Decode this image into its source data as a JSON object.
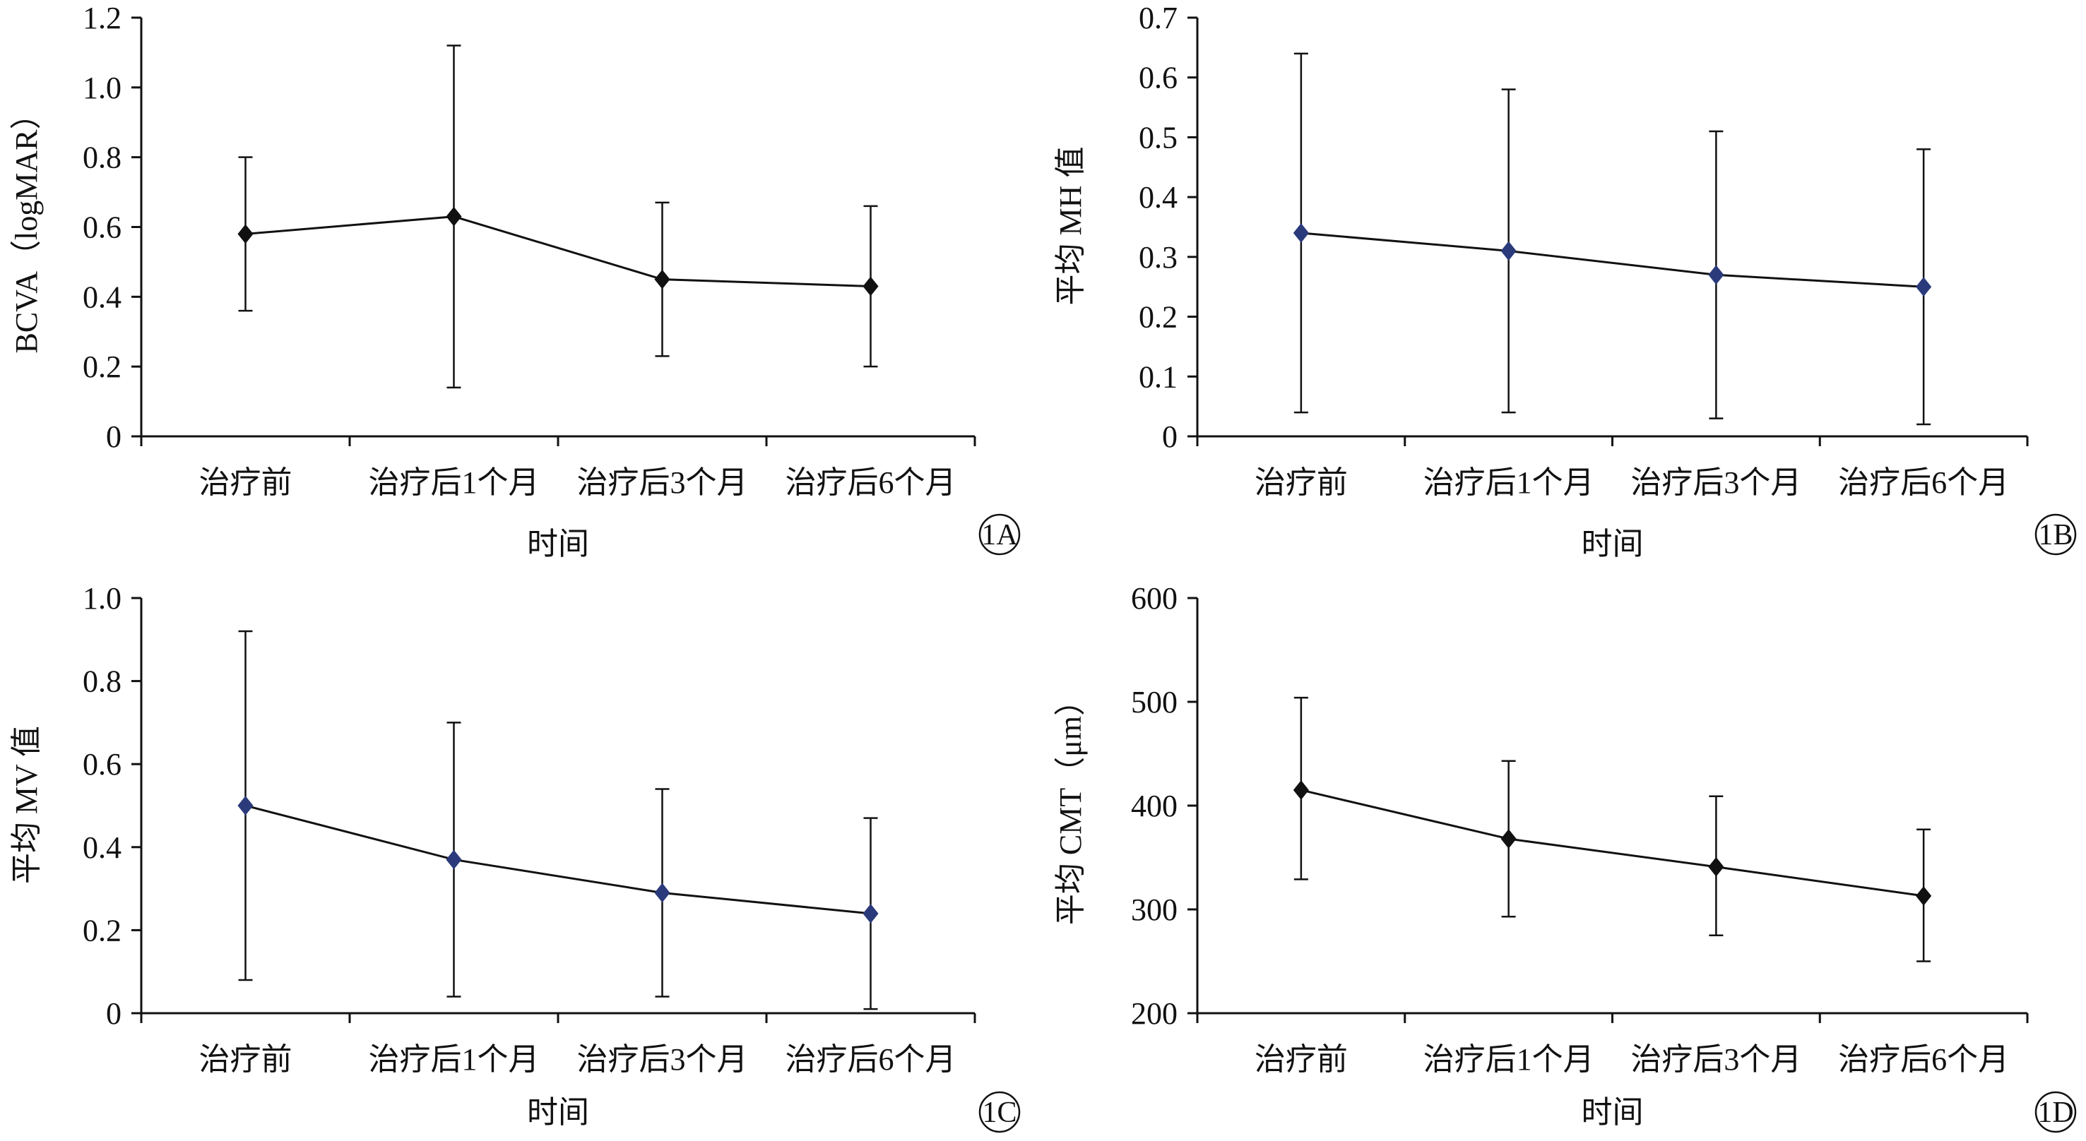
{
  "chart_data": [
    {
      "id": "A",
      "type": "line",
      "panel_label": "1A",
      "ylabel": "BCVA（logMAR）",
      "xlabel": "时间",
      "categories": [
        "治疗前",
        "治疗后1个月",
        "治疗后3个月",
        "治疗后6个月"
      ],
      "ylim": [
        0,
        1.2
      ],
      "yticks": [
        "0",
        "0.2",
        "0.4",
        "0.6",
        "0.8",
        "1.0",
        "1.2"
      ],
      "series": [
        {
          "values": [
            0.58,
            0.63,
            0.45,
            0.43
          ],
          "error_low": [
            0.36,
            0.14,
            0.23,
            0.2
          ],
          "error_high": [
            0.8,
            1.12,
            0.67,
            0.66
          ],
          "color": "#111111",
          "marker": "diamond"
        }
      ]
    },
    {
      "id": "B",
      "type": "line",
      "panel_label": "1B",
      "ylabel": "平均 MH 值",
      "xlabel": "时间",
      "categories": [
        "治疗前",
        "治疗后1个月",
        "治疗后3个月",
        "治疗后6个月"
      ],
      "ylim": [
        0,
        0.7
      ],
      "yticks": [
        "0",
        "0.1",
        "0.2",
        "0.3",
        "0.4",
        "0.5",
        "0.6",
        "0.7"
      ],
      "series": [
        {
          "values": [
            0.34,
            0.31,
            0.27,
            0.25
          ],
          "error_low": [
            0.04,
            0.04,
            0.03,
            0.02
          ],
          "error_high": [
            0.64,
            0.58,
            0.51,
            0.48
          ],
          "color": "#2b3a7a",
          "marker": "diamond"
        }
      ]
    },
    {
      "id": "C",
      "type": "line",
      "panel_label": "1C",
      "ylabel": "平均 MV 值",
      "xlabel": "时间",
      "categories": [
        "治疗前",
        "治疗后1个月",
        "治疗后3个月",
        "治疗后6个月"
      ],
      "ylim": [
        0,
        1.0
      ],
      "yticks": [
        "0",
        "0.2",
        "0.4",
        "0.6",
        "0.8",
        "1.0"
      ],
      "series": [
        {
          "values": [
            0.5,
            0.37,
            0.29,
            0.24
          ],
          "error_low": [
            0.08,
            0.04,
            0.04,
            0.01
          ],
          "error_high": [
            0.92,
            0.7,
            0.54,
            0.47
          ],
          "color": "#2b3a7a",
          "marker": "diamond"
        }
      ]
    },
    {
      "id": "D",
      "type": "line",
      "panel_label": "1D",
      "ylabel": "平均 CMT（μm）",
      "xlabel": "时间",
      "categories": [
        "治疗前",
        "治疗后1个月",
        "治疗后3个月",
        "治疗后6个月"
      ],
      "ylim": [
        200,
        600
      ],
      "yticks": [
        "200",
        "300",
        "400",
        "500",
        "600"
      ],
      "series": [
        {
          "values": [
            415,
            368,
            341,
            313
          ],
          "error_low": [
            329,
            293,
            275,
            250
          ],
          "error_high": [
            504,
            443,
            409,
            377
          ],
          "color": "#111111",
          "marker": "diamond"
        }
      ]
    }
  ]
}
